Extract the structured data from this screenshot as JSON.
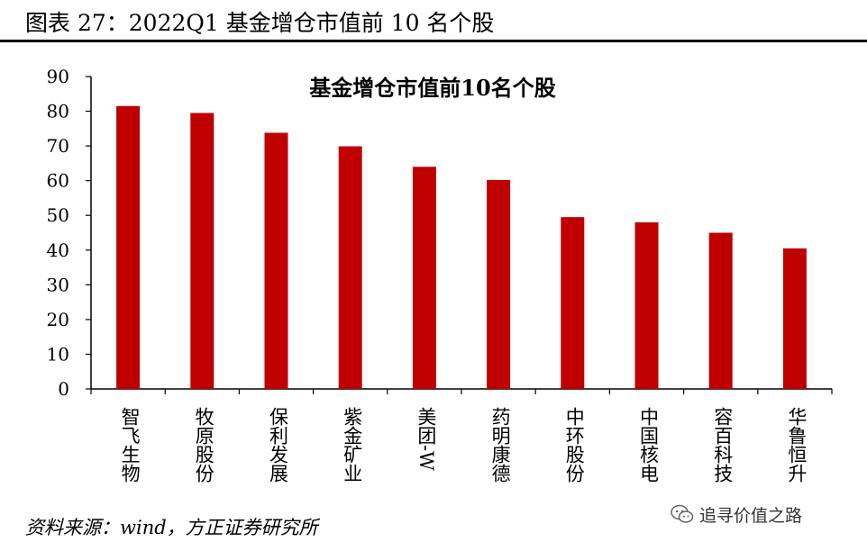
{
  "figure_title": "图表 27：2022Q1 基金增仓市值前 10 名个股",
  "source_note": "资料来源：wind，方正证券研究所",
  "watermark": {
    "icon": "wechat-icon",
    "text": "追寻价值之路"
  },
  "colors": {
    "bar": "#C00000",
    "axis": "#000000",
    "text": "#000000"
  },
  "chart_data": {
    "type": "bar",
    "title": "基金增仓市值前10名个股",
    "xlabel": "",
    "ylabel": "",
    "ylim": [
      0,
      90
    ],
    "yticks": [
      0,
      10,
      20,
      30,
      40,
      50,
      60,
      70,
      80,
      90
    ],
    "grid": false,
    "legend": "none",
    "categories": [
      "智飞生物",
      "牧原股份",
      "保利发展",
      "紫金矿业",
      "美团-W",
      "药明康德",
      "中环股份",
      "中国核电",
      "容百科技",
      "华鲁恒升"
    ],
    "values": [
      81.5,
      79.5,
      73.8,
      69.9,
      64.0,
      60.2,
      49.5,
      48.0,
      45.0,
      40.5
    ]
  }
}
